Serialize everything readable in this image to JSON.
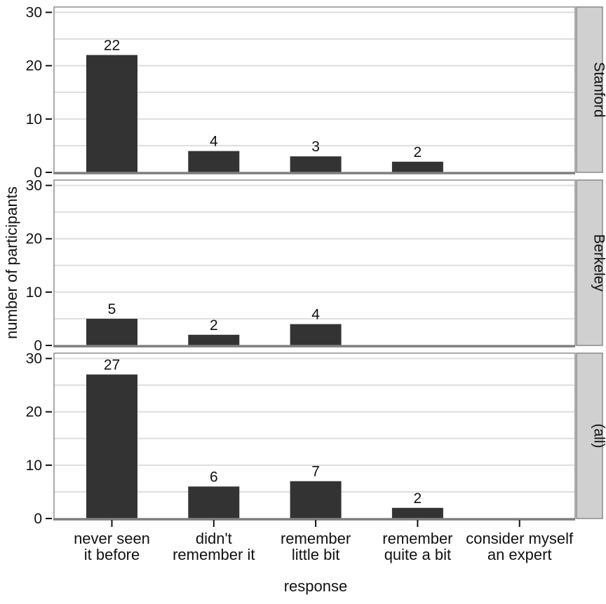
{
  "chart_data": {
    "type": "bar",
    "title": "",
    "xlabel": "response",
    "ylabel": "number of participants",
    "categories": [
      [
        "never seen",
        "it before"
      ],
      [
        "didn't",
        "remember it"
      ],
      [
        "remember",
        "little bit"
      ],
      [
        "remember",
        "quite a bit"
      ],
      [
        "consider myself",
        "an expert"
      ]
    ],
    "facets": [
      {
        "label": "Stanford",
        "values": [
          22,
          4,
          3,
          2,
          0
        ]
      },
      {
        "label": "Berkeley",
        "values": [
          5,
          2,
          4,
          0,
          0
        ]
      },
      {
        "label": "(all)",
        "values": [
          27,
          6,
          7,
          2,
          0
        ]
      }
    ],
    "facet_strip_position": "right",
    "value_labels": true,
    "ylim": [
      0,
      31
    ],
    "yticks": [
      0,
      10,
      20,
      30
    ],
    "grid_step": 5,
    "grid": true,
    "legend": "none",
    "colors": {
      "bar": "#333333",
      "grid": "#dedede",
      "panel_border": "#8f8f8f",
      "axis_line": "#7d7d7d",
      "strip_bg": "#d0d0d0",
      "strip_border": "#8a8a8a",
      "tick": "#111111",
      "text": "#111111",
      "background": "#ffffff"
    }
  }
}
